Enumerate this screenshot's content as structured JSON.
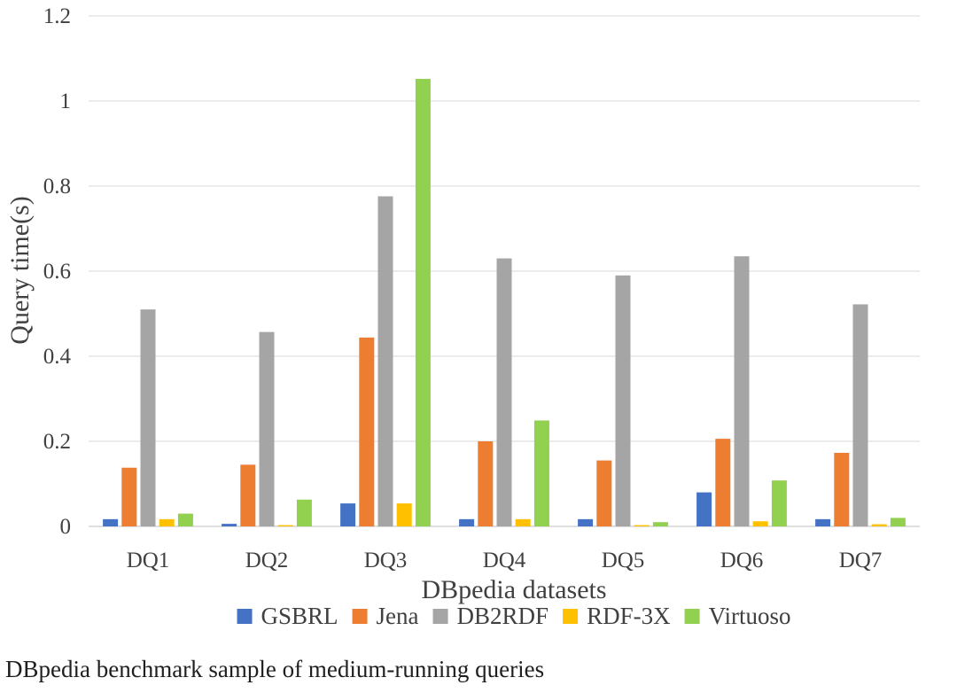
{
  "caption": "DBpedia benchmark sample of medium-running queries",
  "chart_data": {
    "type": "bar",
    "title": "",
    "xlabel": "DBpedia datasets",
    "ylabel": "Query time(s)",
    "ylim": [
      0,
      1.2
    ],
    "yticks": [
      "0",
      "0.2",
      "0.4",
      "0.6",
      "0.8",
      "1",
      "1.2"
    ],
    "grid": true,
    "legend_position": "bottom",
    "categories": [
      "DQ1",
      "DQ2",
      "DQ3",
      "DQ4",
      "DQ5",
      "DQ6",
      "DQ7"
    ],
    "series": [
      {
        "name": "GSBRL",
        "color": "#4472C4",
        "values": [
          0.017,
          0.006,
          0.054,
          0.017,
          0.017,
          0.08,
          0.017
        ]
      },
      {
        "name": "Jena",
        "color": "#ED7D31",
        "values": [
          0.138,
          0.145,
          0.444,
          0.2,
          0.155,
          0.206,
          0.173
        ]
      },
      {
        "name": "DB2RDF",
        "color": "#A5A5A5",
        "values": [
          0.51,
          0.457,
          0.776,
          0.63,
          0.59,
          0.635,
          0.522
        ]
      },
      {
        "name": "RDF-3X",
        "color": "#FFC000",
        "values": [
          0.017,
          0.003,
          0.054,
          0.017,
          0.003,
          0.012,
          0.005
        ]
      },
      {
        "name": "Virtuoso",
        "color": "#92D050",
        "values": [
          0.03,
          0.063,
          1.052,
          0.249,
          0.01,
          0.108,
          0.02
        ]
      }
    ]
  }
}
